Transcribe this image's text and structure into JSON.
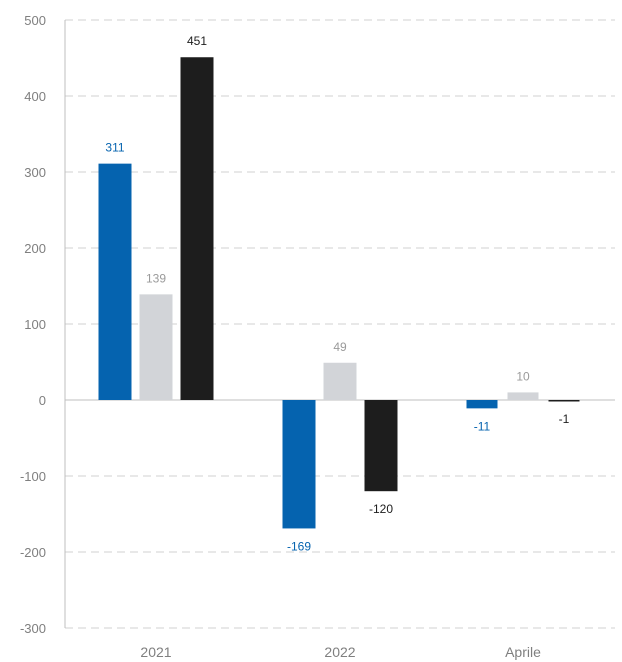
{
  "chart_data": {
    "type": "bar",
    "categories": [
      "2021",
      "2022",
      "Aprile"
    ],
    "series": [
      {
        "values": [
          311,
          -169,
          -11
        ],
        "color": "#0563AF",
        "label_color": "#0563AF"
      },
      {
        "values": [
          139,
          49,
          10
        ],
        "color": "#D2D4D8",
        "label_color": "#9a9a9a"
      },
      {
        "values": [
          451,
          -120,
          -1
        ],
        "color": "#1D1D1D",
        "label_color": "#1D1D1D"
      }
    ],
    "data_labels": [
      [
        "311",
        "-169",
        "-11"
      ],
      [
        "139",
        "49",
        "10"
      ],
      [
        "451",
        "-120",
        "-1"
      ]
    ],
    "yticks": [
      500,
      400,
      300,
      200,
      100,
      0,
      -100,
      -200,
      -300
    ],
    "ytick_labels": [
      "500",
      "400",
      "300",
      "200",
      "100",
      "0",
      "-100",
      "-200",
      "-300"
    ],
    "ylim": [
      -300,
      500
    ],
    "grid": true,
    "legend": "none",
    "title": "",
    "xlabel": "",
    "ylabel": ""
  }
}
